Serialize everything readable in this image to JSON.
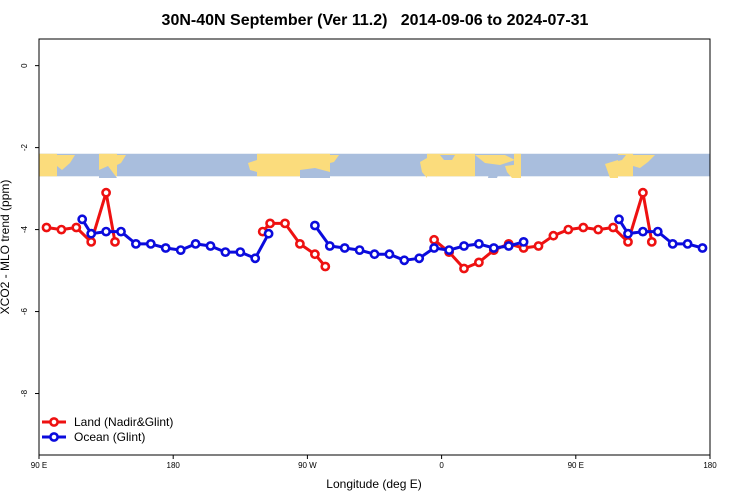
{
  "colors": {
    "land": "#ee1111",
    "ocean": "#0b0bdd",
    "map_ocean": "#a9bedd",
    "map_land": "#fbdc7c"
  },
  "chart_data": {
    "type": "line",
    "title": "30N-40N September (Ver 11.2)   2014-09-06 to 2024-07-31",
    "xlabel": "Longitude (deg E)",
    "ylabel": "XCO2 - MLO trend (ppm)",
    "xlim": [
      90,
      540
    ],
    "ylim": [
      -9.5,
      0.65
    ],
    "xticks": [
      {
        "value": 90,
        "label": "90 E"
      },
      {
        "value": 180,
        "label": "180"
      },
      {
        "value": 270,
        "label": "90 W"
      },
      {
        "value": 360,
        "label": "0"
      },
      {
        "value": 450,
        "label": "90 E"
      },
      {
        "value": 540,
        "label": "180"
      }
    ],
    "yticks": [
      {
        "value": 0,
        "label": "0"
      },
      {
        "value": -2,
        "label": "-2"
      },
      {
        "value": -4,
        "label": "-4"
      },
      {
        "value": -6,
        "label": "-6"
      },
      {
        "value": -8,
        "label": "-8"
      }
    ],
    "map_strip": {
      "y_top": -2.15,
      "y_bottom": -2.7
    },
    "legend_position": "bottom-left",
    "series": [
      {
        "name": "Land (Nadir&Glint)",
        "color_key": "land",
        "segments": [
          [
            [
              95,
              -3.95
            ],
            [
              105,
              -4.0
            ],
            [
              115,
              -3.95
            ],
            [
              125,
              -4.3
            ],
            [
              135,
              -3.1
            ],
            [
              141,
              -4.3
            ]
          ],
          [
            [
              240,
              -4.05
            ],
            [
              245,
              -3.85
            ],
            [
              255,
              -3.85
            ],
            [
              265,
              -4.35
            ],
            [
              275,
              -4.6
            ],
            [
              282,
              -4.9
            ]
          ],
          [
            [
              355,
              -4.25
            ],
            [
              365,
              -4.55
            ],
            [
              375,
              -4.95
            ],
            [
              385,
              -4.8
            ],
            [
              395,
              -4.5
            ],
            [
              405,
              -4.35
            ],
            [
              415,
              -4.45
            ],
            [
              425,
              -4.4
            ],
            [
              435,
              -4.15
            ],
            [
              445,
              -4.0
            ],
            [
              455,
              -3.95
            ],
            [
              465,
              -4.0
            ],
            [
              475,
              -3.95
            ],
            [
              485,
              -4.3
            ],
            [
              495,
              -3.1
            ],
            [
              501,
              -4.3
            ]
          ]
        ]
      },
      {
        "name": "Ocean (Glint)",
        "color_key": "ocean",
        "segments": [
          [
            [
              119,
              -3.75
            ],
            [
              125,
              -4.1
            ],
            [
              135,
              -4.05
            ],
            [
              145,
              -4.05
            ],
            [
              155,
              -4.35
            ],
            [
              165,
              -4.35
            ],
            [
              175,
              -4.45
            ],
            [
              185,
              -4.5
            ],
            [
              195,
              -4.35
            ],
            [
              205,
              -4.4
            ],
            [
              215,
              -4.55
            ],
            [
              225,
              -4.55
            ],
            [
              235,
              -4.7
            ],
            [
              244,
              -4.1
            ]
          ],
          [
            [
              275,
              -3.9
            ],
            [
              285,
              -4.4
            ],
            [
              295,
              -4.45
            ],
            [
              305,
              -4.5
            ],
            [
              315,
              -4.6
            ],
            [
              325,
              -4.6
            ],
            [
              335,
              -4.75
            ],
            [
              345,
              -4.7
            ],
            [
              355,
              -4.45
            ],
            [
              365,
              -4.5
            ],
            [
              375,
              -4.4
            ],
            [
              385,
              -4.35
            ],
            [
              395,
              -4.45
            ],
            [
              405,
              -4.4
            ],
            [
              415,
              -4.3
            ]
          ],
          [
            [
              479,
              -3.75
            ],
            [
              485,
              -4.1
            ],
            [
              495,
              -4.05
            ],
            [
              505,
              -4.05
            ],
            [
              515,
              -4.35
            ],
            [
              525,
              -4.35
            ],
            [
              535,
              -4.45
            ]
          ]
        ]
      }
    ]
  }
}
